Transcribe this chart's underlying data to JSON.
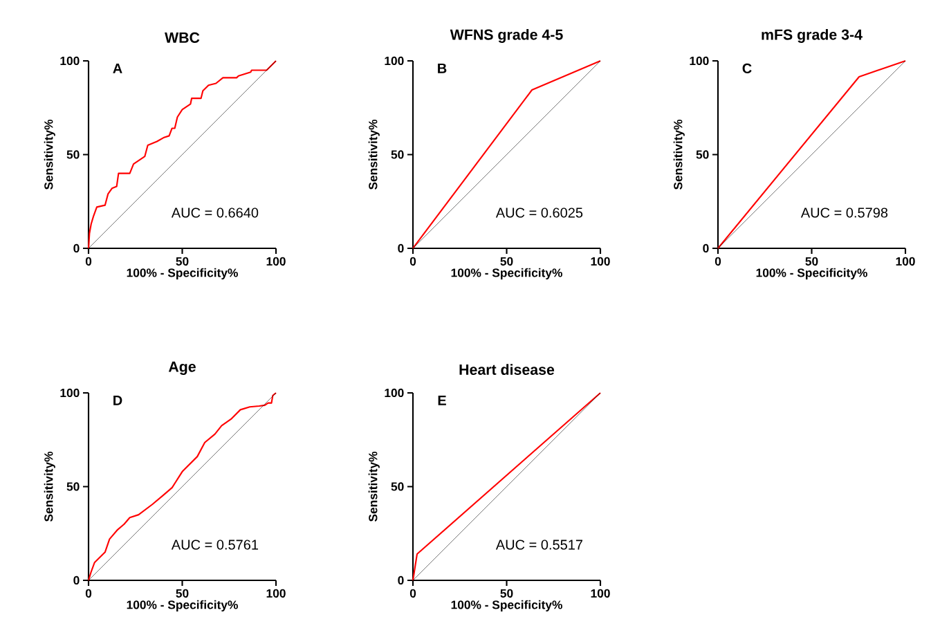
{
  "chart_data": [
    {
      "type": "line",
      "title": "WBC",
      "xlabel": "100% - Specificity%",
      "ylabel": "Sensitivity%",
      "xlim": [
        0,
        100
      ],
      "ylim": [
        0,
        100
      ],
      "xticks": [
        0,
        50,
        100
      ],
      "yticks": [
        0,
        50,
        100
      ],
      "marker": "none",
      "annotations": [
        "A",
        "AUC = 0.6640"
      ],
      "series": [
        {
          "color": "#ff0000",
          "x": [
            0,
            0.5,
            1.4,
            2.6,
            4.4,
            8.8,
            10.4,
            12.5,
            15,
            16,
            22,
            24,
            27,
            30,
            31.6,
            36.5,
            40,
            43,
            44.5,
            46,
            47.4,
            50,
            54.4,
            55,
            60,
            61,
            64,
            68,
            71.7,
            79,
            80,
            86.5,
            87,
            95,
            97,
            100
          ],
          "values": [
            0,
            8,
            13,
            17,
            22,
            23,
            29,
            32,
            33,
            40,
            40,
            45,
            47,
            49,
            55,
            57,
            59,
            60,
            64,
            64,
            70,
            74,
            77,
            80,
            80,
            84,
            87,
            88,
            91,
            91,
            92,
            94,
            95,
            95,
            97,
            100
          ]
        },
        {
          "color": "#000000",
          "x": [
            0,
            100
          ],
          "values": [
            0,
            100
          ]
        }
      ]
    },
    {
      "type": "line",
      "title": "WFNS grade 4-5",
      "xlabel": "100% - Specificity%",
      "ylabel": "Sensitivity%",
      "xlim": [
        0,
        100
      ],
      "ylim": [
        0,
        100
      ],
      "xticks": [
        0,
        50,
        100
      ],
      "yticks": [
        0,
        50,
        100
      ],
      "marker": "none",
      "annotations": [
        "B",
        "AUC = 0.6025"
      ],
      "series": [
        {
          "color": "#ff0000",
          "x": [
            0,
            63.5,
            100
          ],
          "values": [
            0,
            84.5,
            100
          ]
        },
        {
          "color": "#000000",
          "x": [
            0,
            100
          ],
          "values": [
            0,
            100
          ]
        }
      ]
    },
    {
      "type": "line",
      "title": "mFS grade 3-4",
      "xlabel": "100% - Specificity%",
      "ylabel": "Sensitivity%",
      "xlim": [
        0,
        100
      ],
      "ylim": [
        0,
        100
      ],
      "xticks": [
        0,
        50,
        100
      ],
      "yticks": [
        0,
        50,
        100
      ],
      "marker": "none",
      "annotations": [
        "C",
        "AUC = 0.5798"
      ],
      "series": [
        {
          "color": "#ff0000",
          "x": [
            0,
            75.3,
            100
          ],
          "values": [
            0,
            91.5,
            100
          ]
        },
        {
          "color": "#000000",
          "x": [
            0,
            100
          ],
          "values": [
            0,
            100
          ]
        }
      ]
    },
    {
      "type": "line",
      "title": "Age",
      "xlabel": "100% - Specificity%",
      "ylabel": "Sensitivity%",
      "xlim": [
        0,
        100
      ],
      "ylim": [
        0,
        100
      ],
      "xticks": [
        0,
        50,
        100
      ],
      "yticks": [
        0,
        50,
        100
      ],
      "marker": "none",
      "annotations": [
        "D",
        "AUC = 0.5761"
      ],
      "series": [
        {
          "color": "#ff0000",
          "x": [
            0,
            1.4,
            3.2,
            8.8,
            11.2,
            15.5,
            19,
            22,
            26.7,
            34,
            40,
            44.6,
            50,
            58,
            62,
            67.4,
            71,
            76,
            81,
            86,
            91,
            94,
            95.8,
            97.6,
            98.3,
            100
          ],
          "values": [
            0,
            4.6,
            9.5,
            15,
            22,
            27,
            30,
            33.5,
            35,
            40.5,
            45.5,
            49.5,
            58,
            66,
            73.5,
            78,
            82.5,
            86,
            91,
            92.5,
            93,
            93.4,
            94.6,
            94.6,
            98.6,
            100
          ]
        },
        {
          "color": "#000000",
          "x": [
            0,
            100
          ],
          "values": [
            0,
            100
          ]
        }
      ]
    },
    {
      "type": "line",
      "title": "Heart disease",
      "xlabel": "100% - Specificity%",
      "ylabel": "Sensitivity%",
      "xlim": [
        0,
        100
      ],
      "ylim": [
        0,
        100
      ],
      "xticks": [
        0,
        50,
        100
      ],
      "yticks": [
        0,
        50,
        100
      ],
      "marker": "none",
      "annotations": [
        "E",
        "AUC = 0.5517"
      ],
      "series": [
        {
          "color": "#ff0000",
          "x": [
            0,
            2.2,
            100
          ],
          "values": [
            0,
            14,
            100
          ]
        },
        {
          "color": "#000000",
          "x": [
            0,
            100
          ],
          "values": [
            0,
            100
          ]
        }
      ]
    }
  ]
}
